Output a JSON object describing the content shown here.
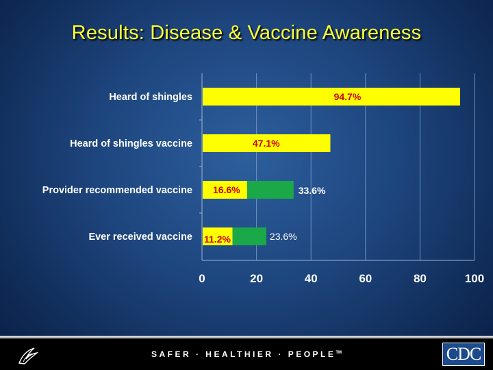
{
  "title": "Results: Disease & Vaccine Awareness",
  "footer": {
    "tagline": "SAFER · HEALTHIER · PEOPLE",
    "trademark": "TM",
    "cdc_logo": "CDC",
    "hhs_logo_icon": "hhs-eagle-icon"
  },
  "colors": {
    "title": "#ffff33",
    "bar_yellow": "#ffff00",
    "bar_green": "#1aa848",
    "label_red": "#cc0000",
    "label_white": "#ffffff",
    "background": "#1d447c"
  },
  "chart_data": {
    "type": "bar",
    "orientation": "horizontal",
    "stacked": true,
    "categories": [
      "Heard of shingles",
      "Heard of shingles  vaccine",
      "Provider recommended  vaccine",
      "Ever received vaccine"
    ],
    "series": [
      {
        "values": [
          94.7,
          47.1,
          16.6,
          11.2
        ],
        "color": "#ffff00",
        "labels": [
          "94.7%",
          "47.1%",
          "16.6%",
          "11.2%"
        ]
      },
      {
        "values": [
          0,
          0,
          17.0,
          12.4
        ],
        "color": "#1aa848",
        "labels": [
          "",
          "",
          "33.6%",
          "23.6%"
        ]
      }
    ],
    "xlim": [
      0,
      100
    ],
    "xticks": [
      "0",
      "20",
      "40",
      "60",
      "80",
      "100"
    ],
    "grid": true,
    "legend": "none"
  }
}
